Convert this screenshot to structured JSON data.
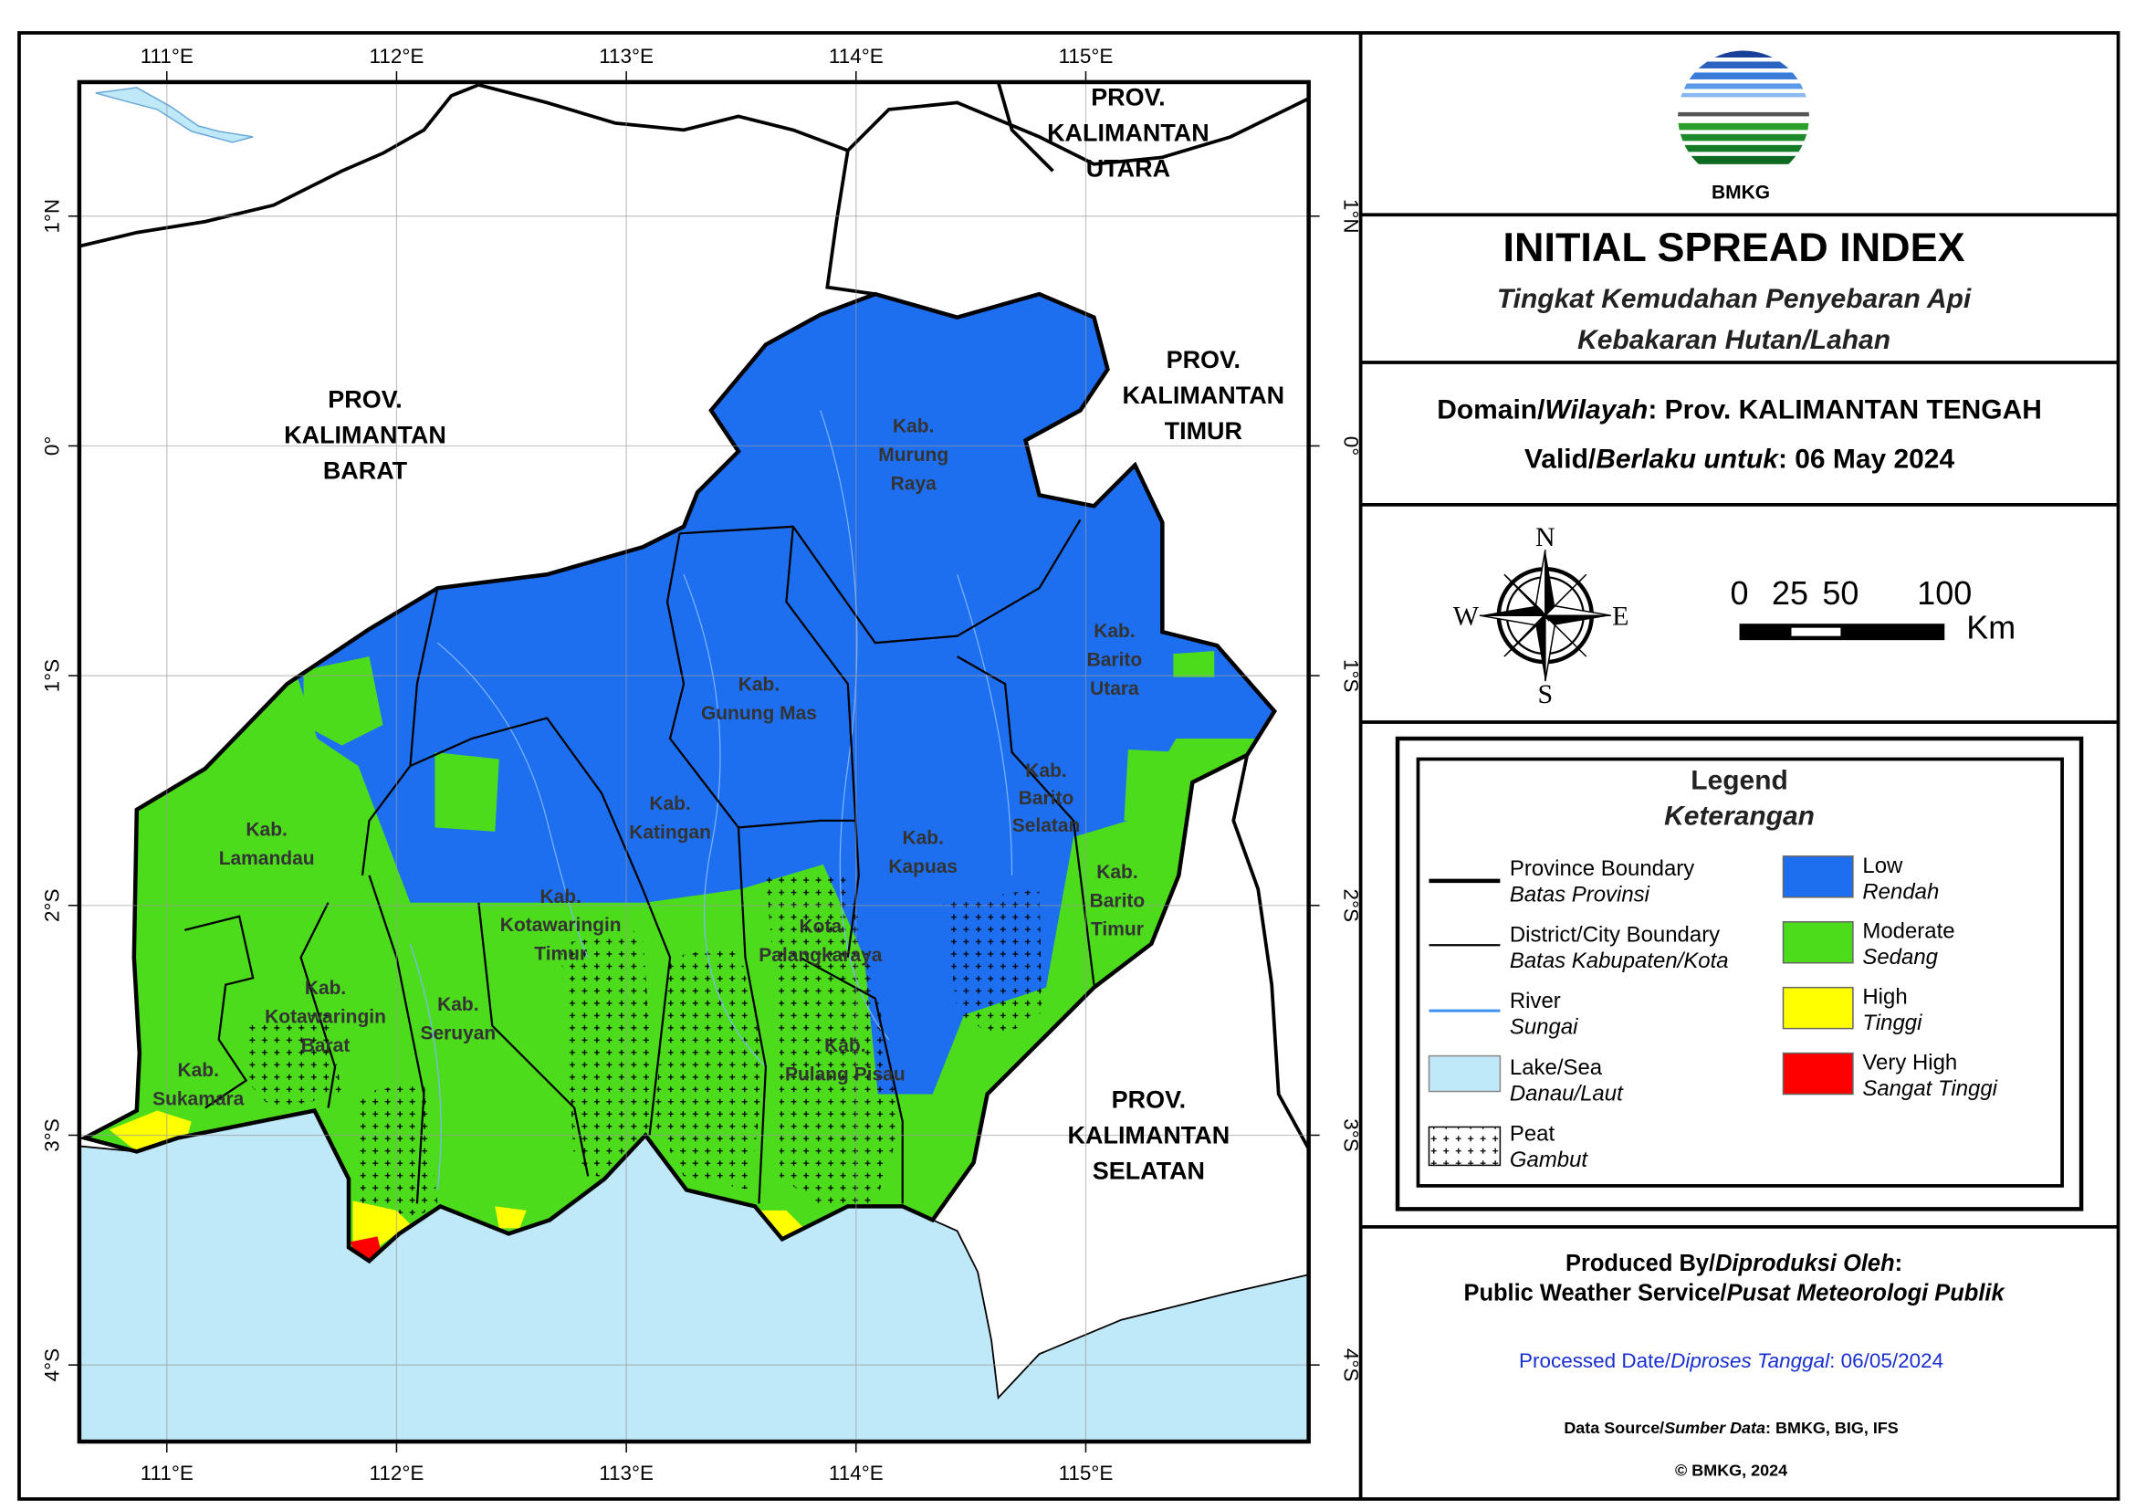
{
  "graticule": {
    "longitudes": [
      "111°E",
      "112°E",
      "113°E",
      "114°E",
      "115°E"
    ],
    "latitudes": [
      "1°N",
      "0°",
      "1°S",
      "2°S",
      "3°S",
      "4°S"
    ]
  },
  "map_labels": [
    {
      "lines": [
        "PROV.",
        "KALIMANTAN",
        "UTARA"
      ]
    },
    {
      "lines": [
        "PROV.",
        "KALIMANTAN",
        "BARAT"
      ]
    },
    {
      "lines": [
        "PROV.",
        "KALIMANTAN",
        "TIMUR"
      ]
    },
    {
      "lines": [
        "PROV.",
        "KALIMANTAN",
        "SELATAN"
      ]
    },
    {
      "lines": [
        "Kab.",
        "Murung",
        "Raya"
      ]
    },
    {
      "lines": [
        "Kab.",
        "Barito",
        "Utara"
      ]
    },
    {
      "lines": [
        "Kab.",
        "Gunung Mas"
      ]
    },
    {
      "lines": [
        "Kab.",
        "Katingan"
      ]
    },
    {
      "lines": [
        "Kab.",
        "Barito",
        "Selatan"
      ]
    },
    {
      "lines": [
        "Kab.",
        "Kapuas"
      ]
    },
    {
      "lines": [
        "Kab.",
        "Barito",
        "Timur"
      ]
    },
    {
      "lines": [
        "Kab.",
        "Lamandau"
      ]
    },
    {
      "lines": [
        "Kab.",
        "Kotawaringin",
        "Timur"
      ]
    },
    {
      "lines": [
        "Kota",
        "Palangkaraya"
      ]
    },
    {
      "lines": [
        "Kab.",
        "Kotawaringin",
        "Barat"
      ]
    },
    {
      "lines": [
        "Kab.",
        "Seruyan"
      ]
    },
    {
      "lines": [
        "Kab.",
        "Pulang Pisau"
      ]
    },
    {
      "lines": [
        "Kab.",
        "Sukamara"
      ]
    }
  ],
  "logo_text": "BMKG",
  "title": "INITIAL SPREAD INDEX",
  "subtitle": [
    "Tingkat Kemudahan Penyebaran Api",
    "Kebakaran Hutan/Lahan"
  ],
  "domain": {
    "label": "Domain/",
    "label_id": "Wilayah",
    "value": ": Prov. KALIMANTAN TENGAH"
  },
  "valid": {
    "label": "Valid/",
    "label_id": "Berlaku untuk",
    "value": ": 06 May 2024"
  },
  "compass": {
    "n": "N",
    "s": "S",
    "e": "E",
    "w": "W"
  },
  "scale_bar": {
    "labels": [
      "0",
      "25",
      "50",
      "100"
    ],
    "unit": "Km"
  },
  "legend": {
    "title": "Legend",
    "subtitle": "Keterangan",
    "features": [
      {
        "en": "Province Boundary",
        "id": "Batas Provinsi"
      },
      {
        "en": "District/City Boundary",
        "id": "Batas Kabupaten/Kota"
      },
      {
        "en": "River",
        "id": "Sungai"
      },
      {
        "en": "Lake/Sea",
        "id": "Danau/Laut"
      },
      {
        "en": "Peat",
        "id": "Gambut"
      }
    ],
    "classes": [
      {
        "en": "Low",
        "id": "Rendah",
        "color": "#1e6ff0"
      },
      {
        "en": "Moderate",
        "id": "Sedang",
        "color": "#4ddc1c"
      },
      {
        "en": "High",
        "id": "Tinggi",
        "color": "#ffff00"
      },
      {
        "en": "Very High",
        "id": "Sangat Tinggi",
        "color": "#ff0000"
      }
    ]
  },
  "produced_by": {
    "en": "Produced By/",
    "id": "Diproduksi Oleh",
    "suffix": ":"
  },
  "producer": {
    "en": "Public Weather Service/",
    "id": "Pusat Meteorologi Publik"
  },
  "processed": {
    "en": "Processed Date/",
    "id": "Diproses Tanggal",
    "value": ": 06/05/2024"
  },
  "data_source": {
    "en": "Data Source/",
    "id": "Sumber Data",
    "value": ": BMKG, BIG, IFS"
  },
  "copyright": "© BMKG, 2024"
}
